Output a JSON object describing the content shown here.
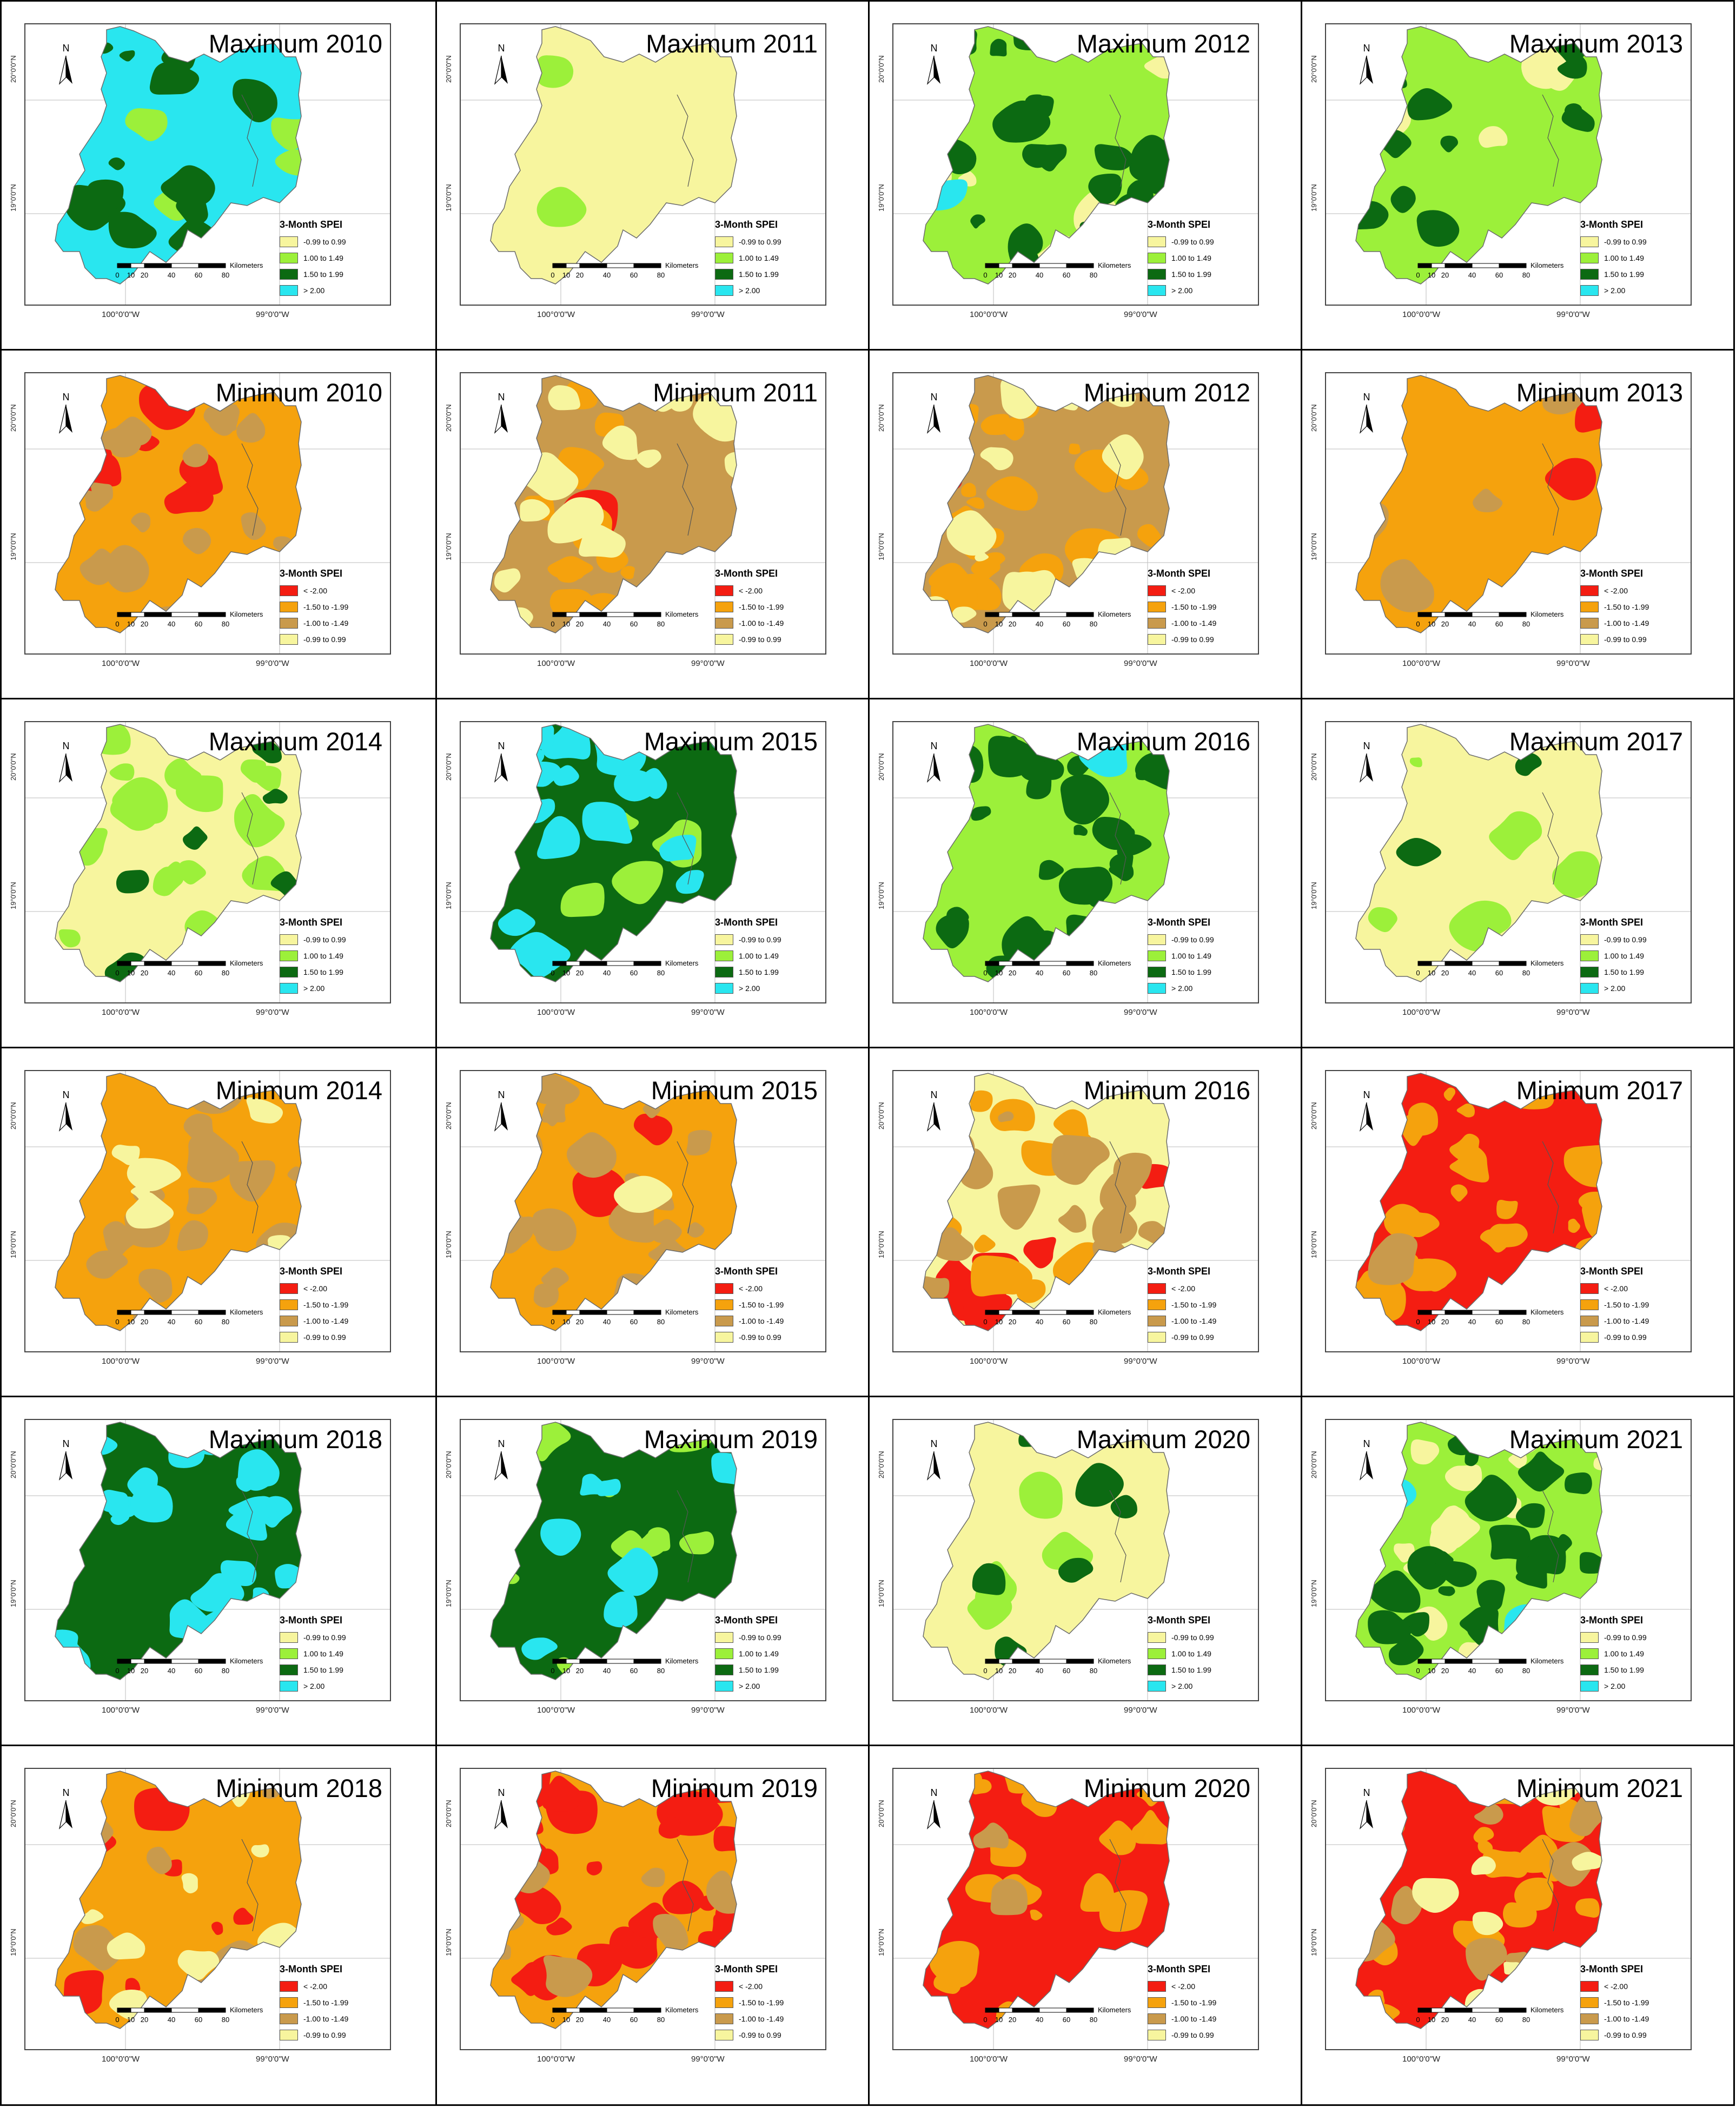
{
  "legend_title": "3-Month SPEI",
  "north_label": "N",
  "scale": {
    "ticks": [
      "0",
      "10",
      "20",
      "40",
      "60",
      "80"
    ],
    "unit": "Kilometers"
  },
  "lat_labels": [
    "20°0'0\"N",
    "19°0'0\"N"
  ],
  "lon_labels": [
    "100°0'0\"W",
    "99°0'0\"W"
  ],
  "classes": {
    "wet": [
      {
        "label": "-0.99 to 0.99",
        "color": "#f7f59e"
      },
      {
        "label": "1.00 to 1.49",
        "color": "#9cf03a"
      },
      {
        "label": "1.50 to 1.99",
        "color": "#0c6a12"
      },
      {
        "label": "> 2.00",
        "color": "#29e6ef"
      }
    ],
    "dry": [
      {
        "label": "< -2.00",
        "color": "#f41d12"
      },
      {
        "label": "-1.50 to -1.99",
        "color": "#f5a20d"
      },
      {
        "label": "-1.00 to -1.49",
        "color": "#c99a4c"
      },
      {
        "label": "-0.99 to 0.99",
        "color": "#f7f59e"
      }
    ]
  },
  "panels": [
    {
      "title": "Maximum 2010",
      "type": "wet",
      "dominant": 3,
      "layers": [
        {
          "c": 1,
          "f": 0.05
        },
        {
          "c": 2,
          "f": 0.3
        },
        {
          "c": 3,
          "f": 0.65
        }
      ]
    },
    {
      "title": "Maximum 2011",
      "type": "wet",
      "dominant": 0,
      "layers": [
        {
          "c": 0,
          "f": 0.98
        },
        {
          "c": 1,
          "f": 0.02
        }
      ]
    },
    {
      "title": "Maximum 2012",
      "type": "wet",
      "dominant": 1,
      "layers": [
        {
          "c": 0,
          "f": 0.1
        },
        {
          "c": 1,
          "f": 0.55
        },
        {
          "c": 2,
          "f": 0.33
        },
        {
          "c": 3,
          "f": 0.02
        }
      ]
    },
    {
      "title": "Maximum 2013",
      "type": "wet",
      "dominant": 1,
      "layers": [
        {
          "c": 0,
          "f": 0.08
        },
        {
          "c": 1,
          "f": 0.8
        },
        {
          "c": 2,
          "f": 0.12
        }
      ]
    },
    {
      "title": "Minimum 2010",
      "type": "dry",
      "dominant": 1,
      "layers": [
        {
          "c": 0,
          "f": 0.14
        },
        {
          "c": 1,
          "f": 0.66
        },
        {
          "c": 2,
          "f": 0.2
        }
      ]
    },
    {
      "title": "Minimum 2011",
      "type": "dry",
      "dominant": 2,
      "layers": [
        {
          "c": 0,
          "f": 0.03
        },
        {
          "c": 1,
          "f": 0.22
        },
        {
          "c": 2,
          "f": 0.55
        },
        {
          "c": 3,
          "f": 0.2
        }
      ]
    },
    {
      "title": "Minimum 2012",
      "type": "dry",
      "dominant": 2,
      "layers": [
        {
          "c": 0,
          "f": 0.01
        },
        {
          "c": 1,
          "f": 0.3
        },
        {
          "c": 2,
          "f": 0.52
        },
        {
          "c": 3,
          "f": 0.17
        }
      ]
    },
    {
      "title": "Minimum 2013",
      "type": "dry",
      "dominant": 1,
      "layers": [
        {
          "c": 0,
          "f": 0.08
        },
        {
          "c": 1,
          "f": 0.8
        },
        {
          "c": 2,
          "f": 0.12
        }
      ]
    },
    {
      "title": "Maximum 2014",
      "type": "wet",
      "dominant": 0,
      "layers": [
        {
          "c": 0,
          "f": 0.6
        },
        {
          "c": 1,
          "f": 0.32
        },
        {
          "c": 2,
          "f": 0.08
        }
      ]
    },
    {
      "title": "Maximum 2015",
      "type": "wet",
      "dominant": 2,
      "layers": [
        {
          "c": 1,
          "f": 0.12
        },
        {
          "c": 2,
          "f": 0.6
        },
        {
          "c": 3,
          "f": 0.28
        }
      ]
    },
    {
      "title": "Maximum 2016",
      "type": "wet",
      "dominant": 1,
      "layers": [
        {
          "c": 1,
          "f": 0.55
        },
        {
          "c": 2,
          "f": 0.43
        },
        {
          "c": 3,
          "f": 0.02
        }
      ]
    },
    {
      "title": "Maximum 2017",
      "type": "wet",
      "dominant": 0,
      "layers": [
        {
          "c": 0,
          "f": 0.9
        },
        {
          "c": 1,
          "f": 0.08
        },
        {
          "c": 2,
          "f": 0.02
        }
      ]
    },
    {
      "title": "Minimum 2014",
      "type": "dry",
      "dominant": 1,
      "layers": [
        {
          "c": 1,
          "f": 0.62
        },
        {
          "c": 2,
          "f": 0.3
        },
        {
          "c": 3,
          "f": 0.08
        }
      ]
    },
    {
      "title": "Minimum 2015",
      "type": "dry",
      "dominant": 1,
      "layers": [
        {
          "c": 0,
          "f": 0.03
        },
        {
          "c": 1,
          "f": 0.6
        },
        {
          "c": 2,
          "f": 0.35
        },
        {
          "c": 3,
          "f": 0.02
        }
      ]
    },
    {
      "title": "Minimum 2016",
      "type": "dry",
      "dominant": 3,
      "layers": [
        {
          "c": 0,
          "f": 0.12
        },
        {
          "c": 1,
          "f": 0.2
        },
        {
          "c": 2,
          "f": 0.25
        },
        {
          "c": 3,
          "f": 0.43
        }
      ]
    },
    {
      "title": "Minimum 2017",
      "type": "dry",
      "dominant": 0,
      "layers": [
        {
          "c": 0,
          "f": 0.55
        },
        {
          "c": 1,
          "f": 0.42
        },
        {
          "c": 2,
          "f": 0.03
        }
      ]
    },
    {
      "title": "Maximum 2018",
      "type": "wet",
      "dominant": 2,
      "layers": [
        {
          "c": 2,
          "f": 0.62
        },
        {
          "c": 3,
          "f": 0.38
        }
      ]
    },
    {
      "title": "Maximum 2019",
      "type": "wet",
      "dominant": 2,
      "layers": [
        {
          "c": 1,
          "f": 0.12
        },
        {
          "c": 2,
          "f": 0.75
        },
        {
          "c": 3,
          "f": 0.13
        }
      ]
    },
    {
      "title": "Maximum 2020",
      "type": "wet",
      "dominant": 0,
      "layers": [
        {
          "c": 0,
          "f": 0.8
        },
        {
          "c": 1,
          "f": 0.12
        },
        {
          "c": 2,
          "f": 0.08
        }
      ]
    },
    {
      "title": "Maximum 2021",
      "type": "wet",
      "dominant": 1,
      "layers": [
        {
          "c": 0,
          "f": 0.18
        },
        {
          "c": 1,
          "f": 0.45
        },
        {
          "c": 2,
          "f": 0.3
        },
        {
          "c": 3,
          "f": 0.07
        }
      ]
    },
    {
      "title": "Minimum 2018",
      "type": "dry",
      "dominant": 1,
      "layers": [
        {
          "c": 0,
          "f": 0.08
        },
        {
          "c": 1,
          "f": 0.72
        },
        {
          "c": 2,
          "f": 0.1
        },
        {
          "c": 3,
          "f": 0.1
        }
      ]
    },
    {
      "title": "Minimum 2019",
      "type": "dry",
      "dominant": 1,
      "layers": [
        {
          "c": 0,
          "f": 0.4
        },
        {
          "c": 1,
          "f": 0.5
        },
        {
          "c": 2,
          "f": 0.1
        }
      ]
    },
    {
      "title": "Minimum 2020",
      "type": "dry",
      "dominant": 0,
      "layers": [
        {
          "c": 0,
          "f": 0.62
        },
        {
          "c": 1,
          "f": 0.35
        },
        {
          "c": 2,
          "f": 0.03
        }
      ]
    },
    {
      "title": "Minimum 2021",
      "type": "dry",
      "dominant": 0,
      "layers": [
        {
          "c": 0,
          "f": 0.5
        },
        {
          "c": 1,
          "f": 0.3
        },
        {
          "c": 2,
          "f": 0.12
        },
        {
          "c": 3,
          "f": 0.08
        }
      ]
    }
  ]
}
